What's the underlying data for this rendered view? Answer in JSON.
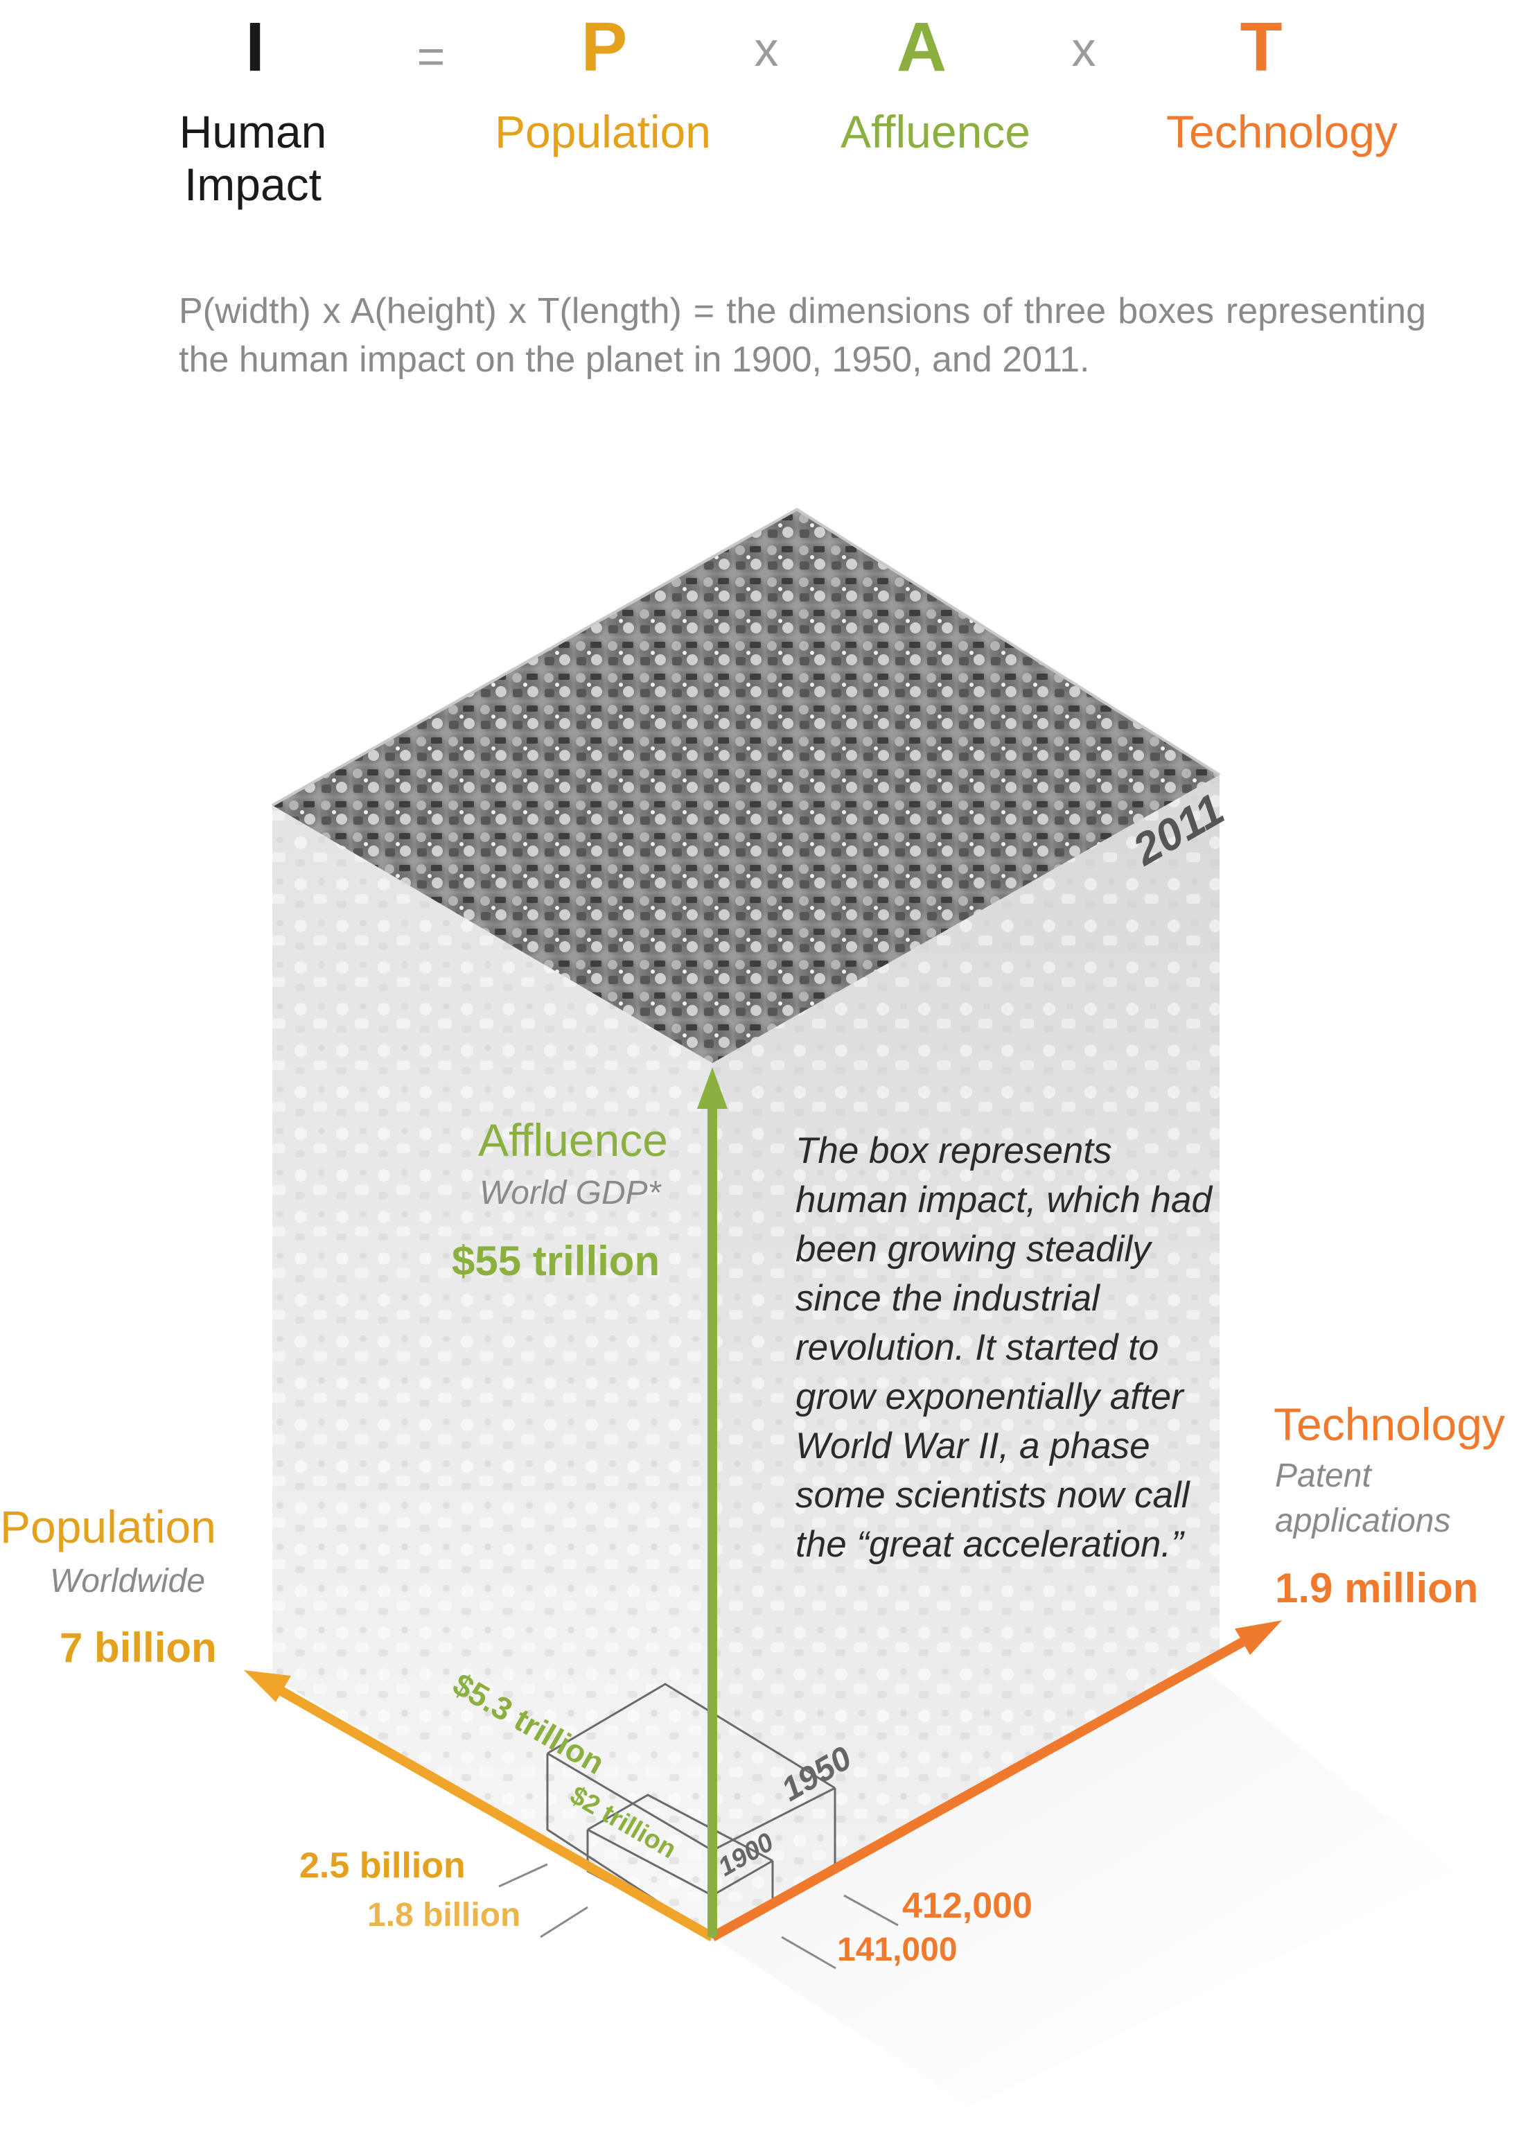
{
  "equation": {
    "i": {
      "letter": "I",
      "word_line1": "Human",
      "word_line2": "Impact",
      "color": "#1a1a1a"
    },
    "equals": "=",
    "p": {
      "letter": "P",
      "word": "Population",
      "color": "#e3a11d"
    },
    "times1": "x",
    "a": {
      "letter": "A",
      "word": "Affluence",
      "color": "#8bb040"
    },
    "times2": "x",
    "t": {
      "letter": "T",
      "word": "Technology",
      "color": "#ef7a2d"
    }
  },
  "caption": "P(width) x A(height) x T(length) = the dimensions of three boxes representing the human impact on the planet in 1900, 1950, and 2011.",
  "box": {
    "year_2011": "2011",
    "year_1950": "1950",
    "year_1900": "1900"
  },
  "affluence": {
    "title": "Affluence",
    "subtitle": "World GDP*",
    "value": "$55 trillion",
    "value_1950": "$5.3 trillion",
    "value_1900": "$2 trillion"
  },
  "population": {
    "title": "Population",
    "subtitle": "Worldwide",
    "value": "7 billion",
    "value_1950": "2.5 billion",
    "value_1900": "1.8 billion"
  },
  "technology": {
    "title": "Technology",
    "subtitle_line1": "Patent",
    "subtitle_line2": "applications",
    "value": "1.9 million",
    "value_1950": "412,000",
    "value_1900": "141,000"
  },
  "story": "The box represents human impact, which had been growing steadily since the industrial revolution. It started to grow exponentially after World War II, a phase some scientists now call the “great acceleration.”"
}
